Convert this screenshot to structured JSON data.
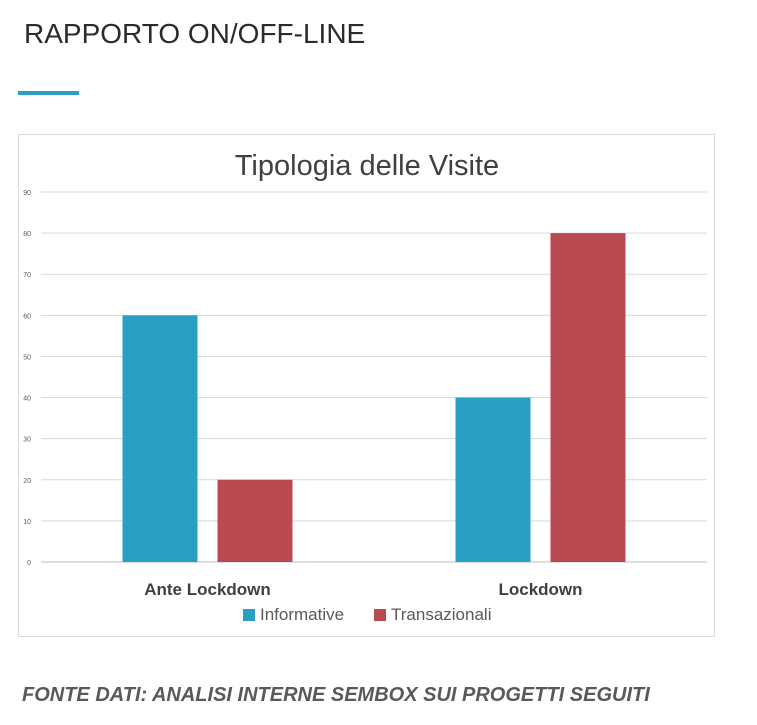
{
  "header": {
    "title": "RAPPORTO ON/OFF-LINE"
  },
  "chart_data": {
    "type": "bar",
    "title": "Tipologia delle Visite",
    "xlabel": "",
    "ylabel": "",
    "categories": [
      "Ante Lockdown",
      "Lockdown"
    ],
    "series": [
      {
        "name": "Informative",
        "values": [
          60,
          40
        ],
        "color": "#2a9fc4"
      },
      {
        "name": "Transazionali",
        "values": [
          20,
          80
        ],
        "color": "#b94a50"
      }
    ],
    "ylim": [
      0,
      90
    ],
    "yticks": [
      0,
      10,
      20,
      30,
      40,
      50,
      60,
      70,
      80,
      90
    ],
    "grid": true,
    "legend_position": "bottom"
  },
  "footer": {
    "source": "FONTE DATI: ANALISI INTERNE SEMBOX SUI PROGETTI SEGUITI"
  },
  "colors": {
    "accent": "#2a9fc4",
    "grid": "#d9d9d9",
    "axis": "#bfbfbf"
  }
}
